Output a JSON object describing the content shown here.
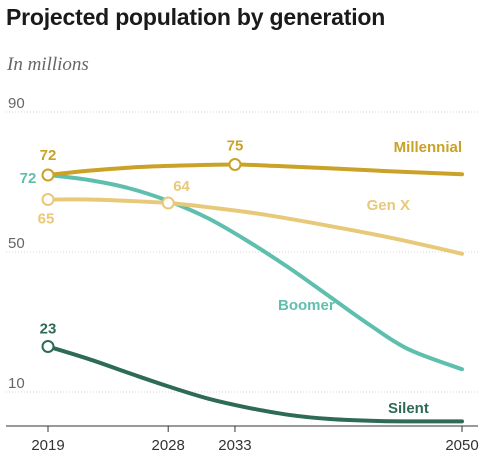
{
  "chart_data": {
    "type": "line",
    "title": "Projected population by generation",
    "subtitle": "In millions",
    "x_ticks": [
      2019,
      2028,
      2033,
      2050
    ],
    "xlim": [
      2019,
      2050
    ],
    "y_ticks": [
      90,
      50,
      10
    ],
    "ylim": [
      0,
      90
    ],
    "grid": true,
    "legend": "inline labels at line ends",
    "series": [
      {
        "name": "Millennial",
        "color": "#c9a227",
        "x": [
          2019,
          2022,
          2025,
          2028,
          2030,
          2033,
          2036,
          2040,
          2045,
          2050
        ],
        "values": [
          72,
          73.2,
          74.1,
          74.6,
          74.8,
          75,
          74.6,
          73.9,
          73.0,
          72.2
        ],
        "labels": [
          {
            "x": 2019,
            "y": 72,
            "text": "72"
          },
          {
            "x": 2033,
            "y": 75,
            "text": "75"
          }
        ]
      },
      {
        "name": "Gen X",
        "color": "#e8c97a",
        "x": [
          2019,
          2022,
          2025,
          2028,
          2031,
          2035,
          2040,
          2045,
          2050
        ],
        "values": [
          65,
          65,
          64.6,
          64,
          62.8,
          60.8,
          57.5,
          53.8,
          49.5
        ],
        "labels": [
          {
            "x": 2019,
            "y": 65,
            "text": "65"
          },
          {
            "x": 2028,
            "y": 64,
            "text": "64"
          }
        ]
      },
      {
        "name": "Boomer",
        "color": "#5fbfae",
        "x": [
          2019,
          2022,
          2025,
          2028,
          2031,
          2034,
          2037,
          2040,
          2043,
          2046,
          2050
        ],
        "values": [
          72,
          70.6,
          68.3,
          64.6,
          59.6,
          53,
          45.6,
          37.5,
          29.4,
          22.2,
          16.5
        ],
        "labels": [
          {
            "x": 2019,
            "y": 72,
            "text": "72"
          }
        ]
      },
      {
        "name": "Silent",
        "color": "#2e6b57",
        "x": [
          2019,
          2022,
          2025,
          2028,
          2031,
          2034,
          2037,
          2040,
          2044,
          2050
        ],
        "values": [
          23,
          19.5,
          15.5,
          11.6,
          8.1,
          5.5,
          3.5,
          2.3,
          1.7,
          1.6
        ],
        "labels": [
          {
            "x": 2019,
            "y": 23,
            "text": "23"
          }
        ]
      }
    ]
  }
}
